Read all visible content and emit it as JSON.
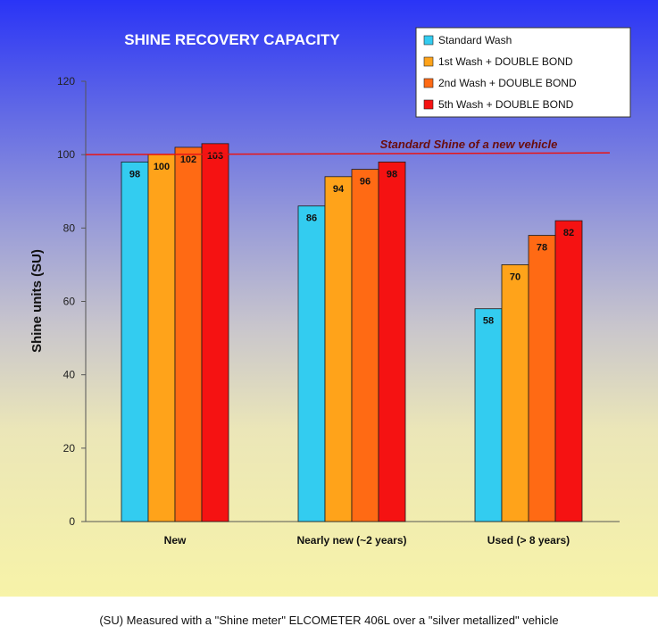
{
  "chart_data": {
    "type": "bar",
    "title": "SHINE RECOVERY CAPACITY",
    "ylabel": "Shine units  (SU)",
    "xlabel": "",
    "ylim": [
      0,
      120
    ],
    "yticks": [
      0,
      20,
      40,
      60,
      80,
      100,
      120
    ],
    "grid": false,
    "legend_position": "top-right",
    "categories": [
      "New",
      "Nearly new (~2 years)",
      "Used (> 8 years)"
    ],
    "series": [
      {
        "name": "Standard Wash",
        "color": "#33ccf0",
        "values": [
          98,
          86,
          58
        ]
      },
      {
        "name": "1st Wash +  DOUBLE BOND",
        "color": "#ffa31a",
        "values": [
          100,
          94,
          70
        ]
      },
      {
        "name": "2nd Wash +  DOUBLE BOND",
        "color": "#ff6a14",
        "values": [
          102,
          96,
          78
        ]
      },
      {
        "name": "5th Wash +  DOUBLE BOND",
        "color": "#f51212",
        "values": [
          103,
          98,
          82
        ]
      }
    ],
    "reference_line": {
      "value": 100,
      "label": "Standard Shine of a new vehicle",
      "color": "#e81515"
    }
  },
  "footer": {
    "caption": "(SU) Measured with a \"Shine meter\" ELCOMETER 406L over a \"silver metallized\" vehicle"
  }
}
